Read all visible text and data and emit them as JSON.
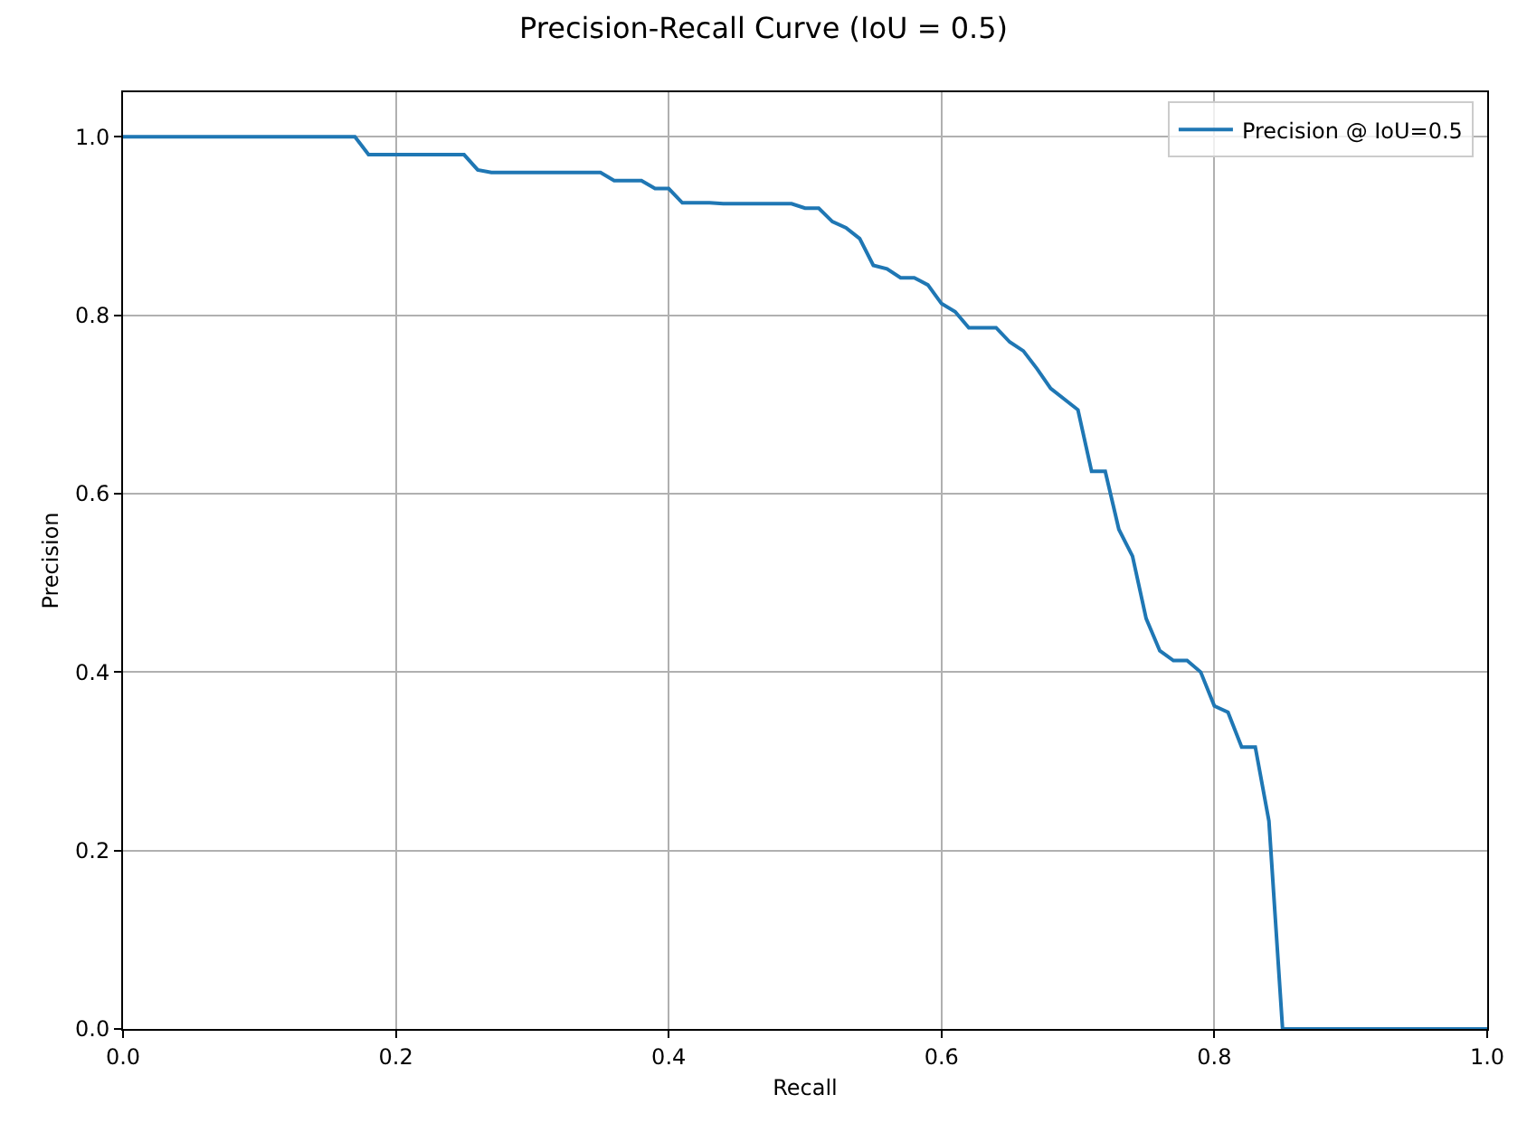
{
  "chart_data": {
    "type": "line",
    "title": "Precision-Recall Curve (IoU = 0.5)",
    "xlabel": "Recall",
    "ylabel": "Precision",
    "x": [
      0,
      0.17,
      0.18,
      0.25,
      0.26,
      0.27,
      0.35,
      0.36,
      0.38,
      0.39,
      0.4,
      0.41,
      0.43,
      0.44,
      0.49,
      0.5,
      0.51,
      0.52,
      0.53,
      0.54,
      0.55,
      0.56,
      0.57,
      0.58,
      0.59,
      0.6,
      0.61,
      0.62,
      0.64,
      0.65,
      0.66,
      0.67,
      0.68,
      0.7,
      0.71,
      0.72,
      0.73,
      0.74,
      0.75,
      0.76,
      0.77,
      0.78,
      0.79,
      0.8,
      0.81,
      0.82,
      0.83,
      0.84,
      0.85,
      1.0
    ],
    "series": [
      {
        "name": "Precision @ IoU=0.5",
        "color": "#1f77b4",
        "values": [
          1.0,
          1.0,
          0.98,
          0.98,
          0.963,
          0.96,
          0.96,
          0.951,
          0.951,
          0.942,
          0.942,
          0.926,
          0.926,
          0.925,
          0.925,
          0.92,
          0.92,
          0.905,
          0.898,
          0.886,
          0.856,
          0.852,
          0.842,
          0.842,
          0.834,
          0.813,
          0.804,
          0.786,
          0.786,
          0.77,
          0.76,
          0.74,
          0.718,
          0.694,
          0.625,
          0.625,
          0.56,
          0.53,
          0.46,
          0.424,
          0.413,
          0.413,
          0.4,
          0.362,
          0.355,
          0.316,
          0.316,
          0.233,
          0.0,
          0.0
        ]
      }
    ],
    "xlim": [
      0,
      1.0
    ],
    "ylim": [
      0,
      1.05
    ],
    "xticks": [
      {
        "value": 0,
        "label": "0.0"
      },
      0.2,
      0.4,
      0.6,
      0.8,
      {
        "value": 1,
        "label": "1.0"
      }
    ],
    "yticks": [
      {
        "value": 0,
        "label": "0.0"
      },
      0.2,
      0.4,
      0.6,
      0.8,
      {
        "value": 1,
        "label": "1.0"
      }
    ],
    "grid": true,
    "legend": "top right",
    "marker": "none",
    "line_style": "solid"
  }
}
